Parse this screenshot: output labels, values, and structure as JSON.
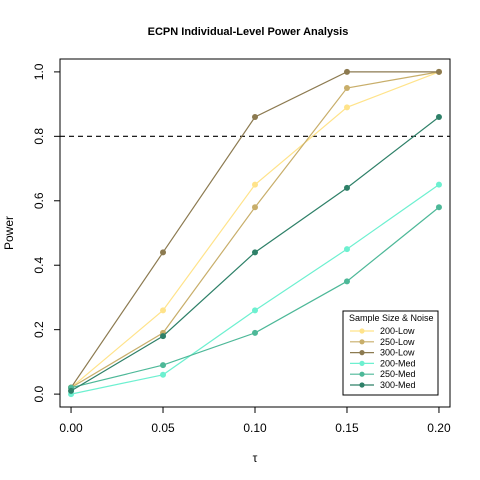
{
  "chart_data": {
    "type": "line",
    "title": "ECPN Individual-Level Power Analysis",
    "xlabel": "τ",
    "ylabel": "Power",
    "x": [
      0.0,
      0.05,
      0.1,
      0.15,
      0.2
    ],
    "x_tick_labels": [
      "0.00",
      "0.05",
      "0.10",
      "0.15",
      "0.20"
    ],
    "y_ticks": [
      0.0,
      0.2,
      0.4,
      0.6,
      0.8,
      1.0
    ],
    "y_tick_labels": [
      "0.0",
      "0.2",
      "0.4",
      "0.6",
      "0.8",
      "1.0"
    ],
    "xlim": [
      -0.006,
      0.206
    ],
    "ylim": [
      -0.04,
      1.04
    ],
    "reference_line": {
      "y": 0.8,
      "style": "dashed",
      "color": "#000000"
    },
    "grid": false,
    "legend": {
      "title": "Sample Size & Noise",
      "position": "bottom-right"
    },
    "series": [
      {
        "name": "200-Low",
        "color": "#FFE38A",
        "values": [
          0.02,
          0.26,
          0.65,
          0.89,
          1.0
        ]
      },
      {
        "name": "250-Low",
        "color": "#C8AE6A",
        "values": [
          0.02,
          0.19,
          0.58,
          0.95,
          1.0
        ]
      },
      {
        "name": "300-Low",
        "color": "#8C7A50",
        "values": [
          0.02,
          0.44,
          0.86,
          1.0,
          1.0
        ]
      },
      {
        "name": "200-Med",
        "color": "#6DF0D0",
        "values": [
          0.0,
          0.06,
          0.26,
          0.45,
          0.65
        ]
      },
      {
        "name": "250-Med",
        "color": "#4DB898",
        "values": [
          0.02,
          0.09,
          0.19,
          0.35,
          0.58
        ]
      },
      {
        "name": "300-Med",
        "color": "#2E8068",
        "values": [
          0.01,
          0.18,
          0.44,
          0.64,
          0.86
        ]
      }
    ]
  }
}
